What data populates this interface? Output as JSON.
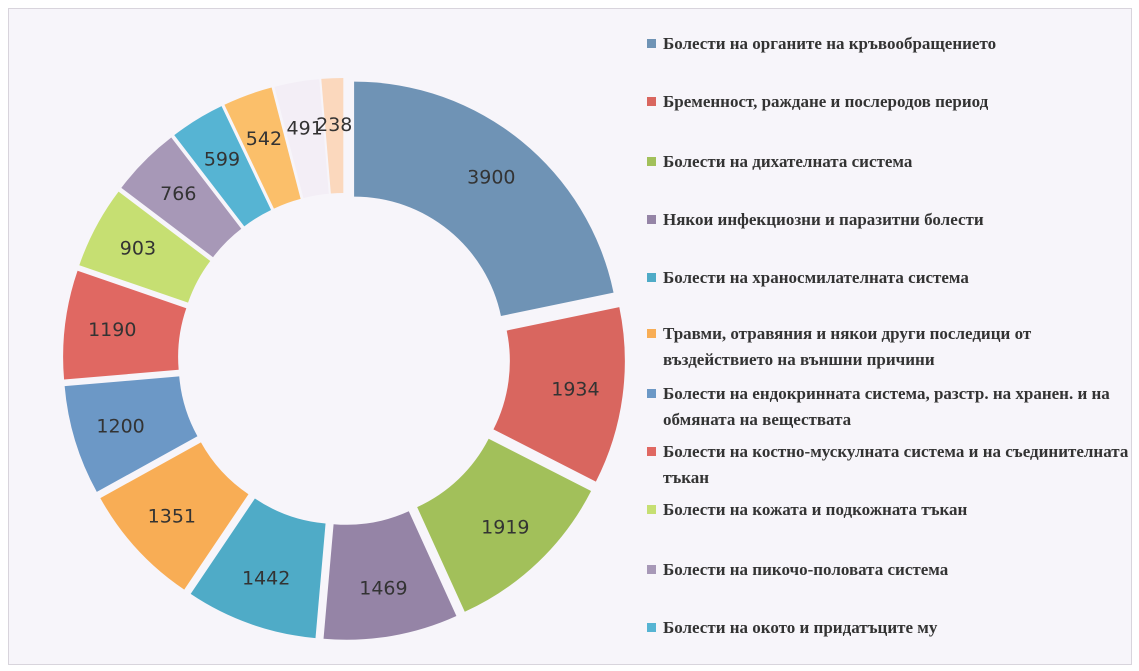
{
  "chart_data": {
    "type": "donut",
    "categories": [
      "Болести на органите на кръвообращението",
      "Бременност, раждане и послеродов период",
      "Болести на дихателната система",
      "Някои инфекциозни и паразитни болести",
      "Болести на храносмилателната система",
      "Травми, отравяния и някои други последици от въздействието на външни причини",
      "Болести на ендокринната система, разстр. на хранен. и на обмяната на веществата",
      "Болести на костно-мускулната система и на съединителната тъкан",
      "Болести на кожата и подкожната тъкан",
      "Болести на пикочо-половата система",
      "Болести на окото и придатъците му",
      null,
      null,
      null
    ],
    "values": [
      3900,
      1934,
      1919,
      1469,
      1442,
      1351,
      1200,
      1190,
      903,
      766,
      599,
      542,
      491,
      238
    ],
    "colors": [
      "#6f93b5",
      "#d9665f",
      "#a2c05a",
      "#9584a6",
      "#4fabc7",
      "#f8ad55",
      "#6c98c6",
      "#e06862",
      "#c6df72",
      "#a798b7",
      "#56b4d3",
      "#fbbf6a",
      "#f3eef6",
      "#fbd8bd"
    ],
    "legend": "right"
  }
}
